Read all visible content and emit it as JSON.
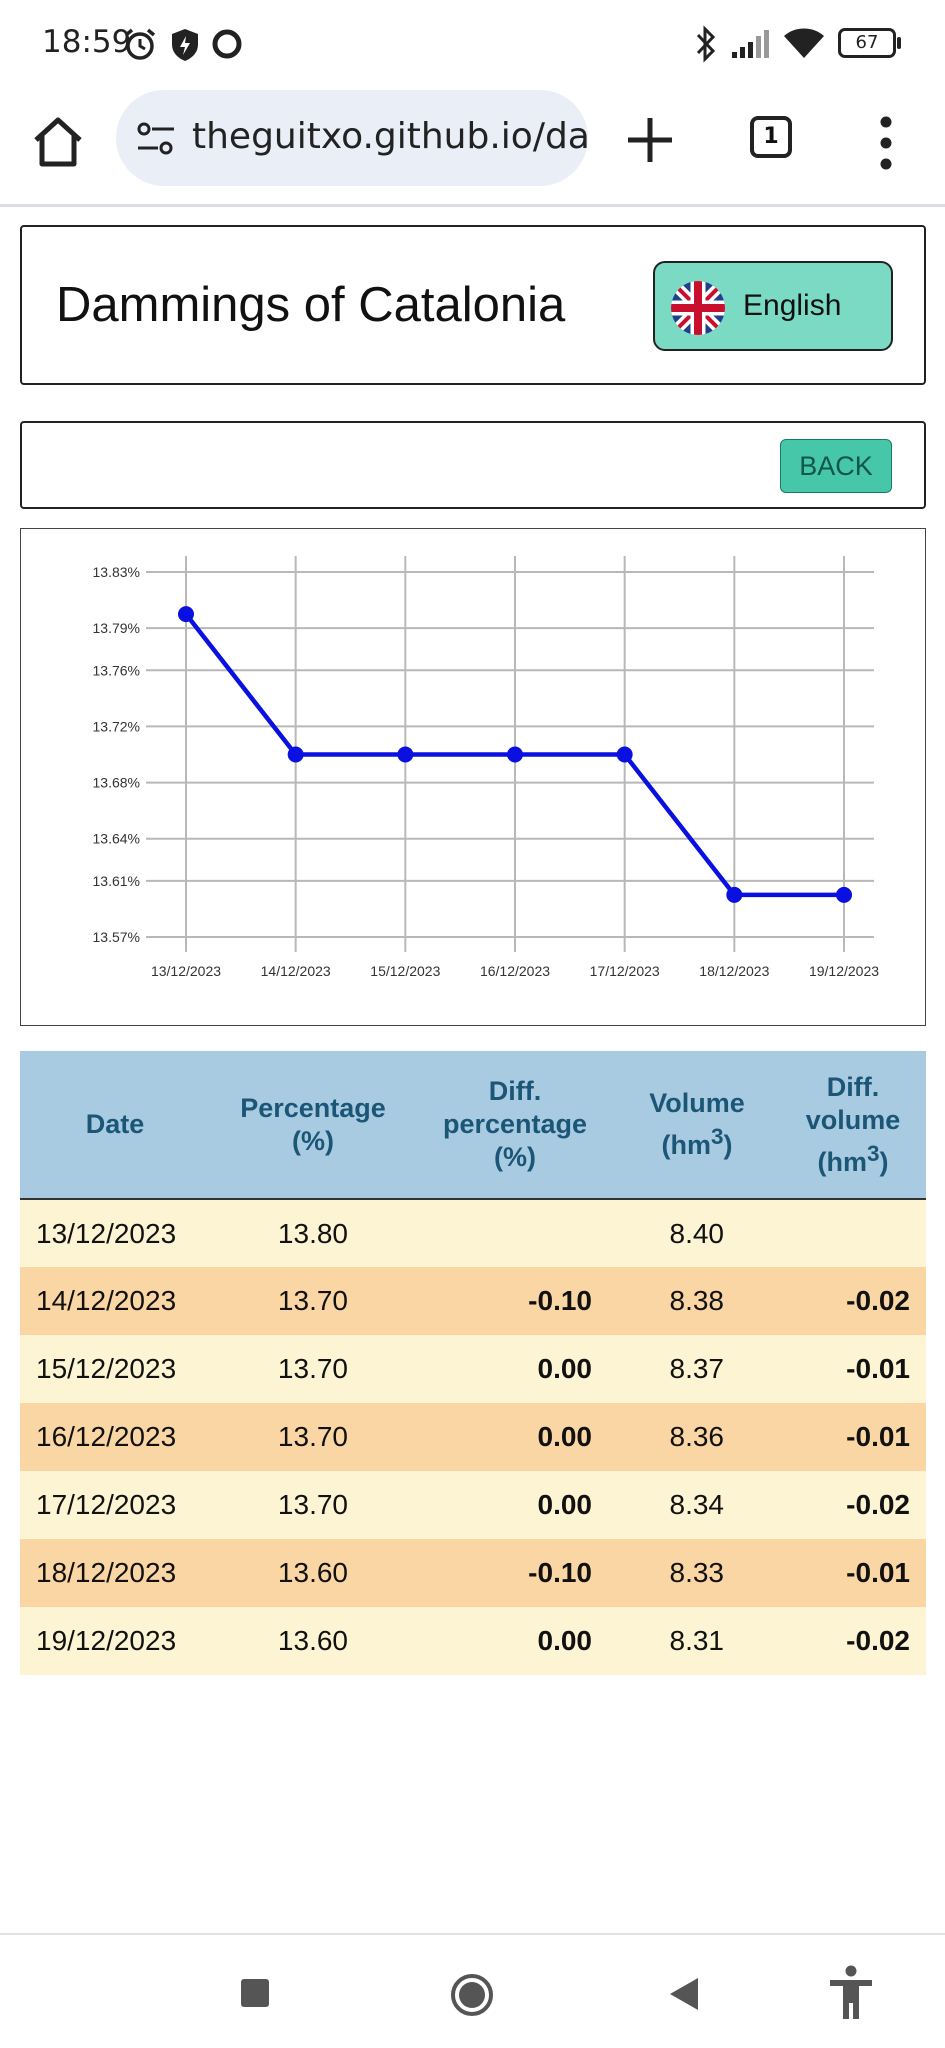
{
  "status_bar": {
    "time": "18:59",
    "battery": "67",
    "icons": [
      "alarm-icon",
      "shield-icon",
      "circle-icon",
      "bluetooth-icon",
      "signal-icon",
      "wifi-icon",
      "battery-icon"
    ]
  },
  "browser": {
    "url": "theguitxo.github.io/da",
    "tab_count": "1",
    "icons": [
      "home-icon",
      "tune-icon",
      "plus-icon",
      "tabs-icon",
      "more-icon"
    ]
  },
  "header": {
    "title": "Dammings of Catalonia",
    "language_label": "English",
    "flag_icon": "uk-flag-icon"
  },
  "back_label": "BACK",
  "chart_data": {
    "type": "line",
    "x": [
      "13/12/2023",
      "14/12/2023",
      "15/12/2023",
      "16/12/2023",
      "17/12/2023",
      "18/12/2023",
      "19/12/2023"
    ],
    "series": [
      {
        "values": [
          13.8,
          13.7,
          13.7,
          13.7,
          13.7,
          13.6,
          13.6
        ],
        "color": "#0a10e0"
      }
    ],
    "y_ticks": [
      13.57,
      13.61,
      13.64,
      13.68,
      13.72,
      13.76,
      13.79,
      13.83
    ],
    "y_tick_labels": [
      "13.57%",
      "13.61%",
      "13.64%",
      "13.68%",
      "13.72%",
      "13.76%",
      "13.79%",
      "13.83%"
    ],
    "ylim": [
      13.57,
      13.83
    ],
    "grid": true,
    "legend": false
  },
  "table": {
    "headers": {
      "date": "Date",
      "percentage": [
        "Percentage",
        "(%)"
      ],
      "diff_percentage": [
        "Diff.",
        "percentage",
        "(%)"
      ],
      "volume": [
        "Volume",
        "(hm",
        "3",
        ")"
      ],
      "diff_volume": [
        "Diff.",
        "volume",
        "(hm",
        "3",
        ")"
      ]
    },
    "rows": [
      {
        "date": "13/12/2023",
        "percentage": "13.80",
        "diff_percentage": "",
        "volume": "8.40",
        "diff_volume": ""
      },
      {
        "date": "14/12/2023",
        "percentage": "13.70",
        "diff_percentage": "-0.10",
        "volume": "8.38",
        "diff_volume": "-0.02"
      },
      {
        "date": "15/12/2023",
        "percentage": "13.70",
        "diff_percentage": "0.00",
        "volume": "8.37",
        "diff_volume": "-0.01"
      },
      {
        "date": "16/12/2023",
        "percentage": "13.70",
        "diff_percentage": "0.00",
        "volume": "8.36",
        "diff_volume": "-0.01"
      },
      {
        "date": "17/12/2023",
        "percentage": "13.70",
        "diff_percentage": "0.00",
        "volume": "8.34",
        "diff_volume": "-0.02"
      },
      {
        "date": "18/12/2023",
        "percentage": "13.60",
        "diff_percentage": "-0.10",
        "volume": "8.33",
        "diff_volume": "-0.01"
      },
      {
        "date": "19/12/2023",
        "percentage": "13.60",
        "diff_percentage": "0.00",
        "volume": "8.31",
        "diff_volume": "-0.02"
      }
    ]
  },
  "nav_bar": {
    "icons": [
      "recents-icon",
      "home-nav-icon",
      "back-nav-icon",
      "accessibility-icon"
    ]
  },
  "colors": {
    "accent_button": "#7bdac4",
    "back_button": "#46c7a9",
    "header_row": "#a9cbe2",
    "row_odd": "#fcf4d3",
    "row_even": "#f9d6a4",
    "negative": "#d4231d",
    "zero": "#157043"
  }
}
